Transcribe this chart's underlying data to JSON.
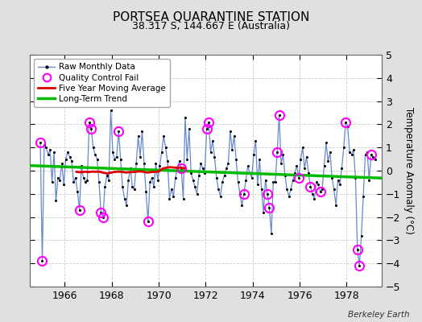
{
  "title": "PORTSEA QUARANTINE STATION",
  "subtitle": "38.317 S, 144.667 E (Australia)",
  "ylabel": "Temperature Anomaly (°C)",
  "watermark": "Berkeley Earth",
  "ylim": [
    -5,
    5
  ],
  "yticks": [
    -5,
    -4,
    -3,
    -2,
    -1,
    0,
    1,
    2,
    3,
    4,
    5
  ],
  "xlim": [
    1964.5,
    1979.5
  ],
  "xticks": [
    1966,
    1968,
    1970,
    1972,
    1974,
    1976,
    1978
  ],
  "background_color": "#e0e0e0",
  "plot_background": "#ffffff",
  "raw_line_color": "#6688cc",
  "dot_color": "#000000",
  "ma_color": "#dd0000",
  "trend_color": "#00bb00",
  "qc_color": "#ff00ff",
  "raw_monthly": [
    [
      1964.958,
      1.2
    ],
    [
      1965.042,
      -3.9
    ],
    [
      1965.125,
      1.1
    ],
    [
      1965.208,
      1.0
    ],
    [
      1965.292,
      0.7
    ],
    [
      1965.375,
      0.9
    ],
    [
      1965.458,
      -0.5
    ],
    [
      1965.542,
      0.8
    ],
    [
      1965.625,
      -1.3
    ],
    [
      1965.708,
      -0.3
    ],
    [
      1965.792,
      -0.4
    ],
    [
      1965.875,
      0.3
    ],
    [
      1965.958,
      -0.6
    ],
    [
      1966.042,
      0.5
    ],
    [
      1966.125,
      0.8
    ],
    [
      1966.208,
      0.6
    ],
    [
      1966.292,
      0.4
    ],
    [
      1966.375,
      -0.5
    ],
    [
      1966.458,
      -0.3
    ],
    [
      1966.542,
      -0.9
    ],
    [
      1966.625,
      -1.7
    ],
    [
      1966.708,
      0.2
    ],
    [
      1966.792,
      -0.3
    ],
    [
      1966.875,
      -0.5
    ],
    [
      1966.958,
      -0.4
    ],
    [
      1967.042,
      2.1
    ],
    [
      1967.125,
      1.8
    ],
    [
      1967.208,
      1.0
    ],
    [
      1967.292,
      0.7
    ],
    [
      1967.375,
      0.5
    ],
    [
      1967.458,
      -0.5
    ],
    [
      1967.542,
      -1.8
    ],
    [
      1967.625,
      -2.0
    ],
    [
      1967.708,
      -0.7
    ],
    [
      1967.792,
      -0.2
    ],
    [
      1967.875,
      -0.4
    ],
    [
      1967.958,
      2.6
    ],
    [
      1968.042,
      0.8
    ],
    [
      1968.125,
      0.5
    ],
    [
      1968.208,
      0.6
    ],
    [
      1968.292,
      1.7
    ],
    [
      1968.375,
      0.5
    ],
    [
      1968.458,
      -0.7
    ],
    [
      1968.542,
      -1.2
    ],
    [
      1968.625,
      -1.5
    ],
    [
      1968.708,
      -0.4
    ],
    [
      1968.792,
      0.1
    ],
    [
      1968.875,
      -0.7
    ],
    [
      1968.958,
      -0.8
    ],
    [
      1969.042,
      0.3
    ],
    [
      1969.125,
      1.5
    ],
    [
      1969.208,
      0.6
    ],
    [
      1969.292,
      1.7
    ],
    [
      1969.375,
      0.3
    ],
    [
      1969.458,
      -0.9
    ],
    [
      1969.542,
      -2.2
    ],
    [
      1969.625,
      -0.5
    ],
    [
      1969.708,
      -0.3
    ],
    [
      1969.792,
      -0.7
    ],
    [
      1969.875,
      0.3
    ],
    [
      1969.958,
      -0.4
    ],
    [
      1970.042,
      0.2
    ],
    [
      1970.125,
      0.8
    ],
    [
      1970.208,
      1.5
    ],
    [
      1970.292,
      1.0
    ],
    [
      1970.375,
      0.4
    ],
    [
      1970.458,
      -1.2
    ],
    [
      1970.542,
      -0.8
    ],
    [
      1970.625,
      -1.1
    ],
    [
      1970.708,
      -0.3
    ],
    [
      1970.792,
      0.1
    ],
    [
      1970.875,
      0.4
    ],
    [
      1970.958,
      0.1
    ],
    [
      1971.042,
      -1.2
    ],
    [
      1971.125,
      2.3
    ],
    [
      1971.208,
      0.5
    ],
    [
      1971.292,
      1.8
    ],
    [
      1971.375,
      -0.1
    ],
    [
      1971.458,
      -0.4
    ],
    [
      1971.542,
      -0.7
    ],
    [
      1971.625,
      -1.0
    ],
    [
      1971.708,
      -0.2
    ],
    [
      1971.792,
      0.3
    ],
    [
      1971.875,
      0.1
    ],
    [
      1971.958,
      -0.1
    ],
    [
      1972.042,
      1.8
    ],
    [
      1972.125,
      2.1
    ],
    [
      1972.208,
      0.8
    ],
    [
      1972.292,
      1.3
    ],
    [
      1972.375,
      0.6
    ],
    [
      1972.458,
      -0.3
    ],
    [
      1972.542,
      -0.8
    ],
    [
      1972.625,
      -1.1
    ],
    [
      1972.708,
      -0.5
    ],
    [
      1972.792,
      -0.2
    ],
    [
      1972.875,
      0.1
    ],
    [
      1972.958,
      0.3
    ],
    [
      1973.042,
      1.7
    ],
    [
      1973.125,
      0.9
    ],
    [
      1973.208,
      1.5
    ],
    [
      1973.292,
      0.5
    ],
    [
      1973.375,
      -0.5
    ],
    [
      1973.458,
      -1.0
    ],
    [
      1973.542,
      -1.5
    ],
    [
      1973.625,
      -1.0
    ],
    [
      1973.708,
      -0.4
    ],
    [
      1973.792,
      0.2
    ],
    [
      1973.875,
      -0.1
    ],
    [
      1973.958,
      -0.3
    ],
    [
      1974.042,
      0.7
    ],
    [
      1974.125,
      1.3
    ],
    [
      1974.208,
      -0.6
    ],
    [
      1974.292,
      0.5
    ],
    [
      1974.375,
      -0.8
    ],
    [
      1974.458,
      -1.8
    ],
    [
      1974.542,
      -0.4
    ],
    [
      1974.625,
      -1.0
    ],
    [
      1974.708,
      -1.6
    ],
    [
      1974.792,
      -2.7
    ],
    [
      1974.875,
      -0.5
    ],
    [
      1974.958,
      -0.5
    ],
    [
      1975.042,
      0.8
    ],
    [
      1975.125,
      2.4
    ],
    [
      1975.208,
      0.3
    ],
    [
      1975.292,
      0.7
    ],
    [
      1975.375,
      -0.2
    ],
    [
      1975.458,
      -0.8
    ],
    [
      1975.542,
      -1.1
    ],
    [
      1975.625,
      -0.8
    ],
    [
      1975.708,
      -0.4
    ],
    [
      1975.792,
      -0.1
    ],
    [
      1975.875,
      0.2
    ],
    [
      1975.958,
      -0.3
    ],
    [
      1976.042,
      0.5
    ],
    [
      1976.125,
      1.0
    ],
    [
      1976.208,
      0.1
    ],
    [
      1976.292,
      0.6
    ],
    [
      1976.375,
      -0.1
    ],
    [
      1976.458,
      -0.7
    ],
    [
      1976.542,
      -1.0
    ],
    [
      1976.625,
      -1.2
    ],
    [
      1976.708,
      -0.5
    ],
    [
      1976.792,
      -0.6
    ],
    [
      1976.875,
      -0.9
    ],
    [
      1976.958,
      -0.8
    ],
    [
      1977.042,
      0.2
    ],
    [
      1977.125,
      1.2
    ],
    [
      1977.208,
      0.4
    ],
    [
      1977.292,
      0.8
    ],
    [
      1977.375,
      -0.3
    ],
    [
      1977.458,
      -0.8
    ],
    [
      1977.542,
      -1.5
    ],
    [
      1977.625,
      -0.4
    ],
    [
      1977.708,
      -0.6
    ],
    [
      1977.792,
      0.1
    ],
    [
      1977.875,
      1.0
    ],
    [
      1977.958,
      2.1
    ],
    [
      1978.042,
      1.9
    ],
    [
      1978.125,
      0.8
    ],
    [
      1978.208,
      0.7
    ],
    [
      1978.292,
      0.9
    ],
    [
      1978.375,
      -0.3
    ],
    [
      1978.458,
      -3.4
    ],
    [
      1978.542,
      -4.1
    ],
    [
      1978.625,
      -2.8
    ],
    [
      1978.708,
      -1.1
    ],
    [
      1978.792,
      0.7
    ],
    [
      1978.875,
      0.8
    ],
    [
      1978.958,
      -0.4
    ],
    [
      1979.042,
      0.7
    ],
    [
      1979.125,
      0.6
    ],
    [
      1979.208,
      0.5
    ]
  ],
  "qc_fail": [
    [
      1964.958,
      1.2
    ],
    [
      1965.042,
      -3.9
    ],
    [
      1966.625,
      -1.7
    ],
    [
      1967.042,
      2.1
    ],
    [
      1967.125,
      1.8
    ],
    [
      1967.542,
      -1.8
    ],
    [
      1967.625,
      -2.0
    ],
    [
      1968.292,
      1.7
    ],
    [
      1969.542,
      -2.2
    ],
    [
      1970.958,
      0.1
    ],
    [
      1972.042,
      1.8
    ],
    [
      1972.125,
      2.1
    ],
    [
      1973.625,
      -1.0
    ],
    [
      1974.625,
      -1.0
    ],
    [
      1974.708,
      -1.6
    ],
    [
      1975.042,
      0.8
    ],
    [
      1975.125,
      2.4
    ],
    [
      1975.958,
      -0.3
    ],
    [
      1976.458,
      -0.7
    ],
    [
      1976.875,
      -0.9
    ],
    [
      1977.958,
      2.1
    ],
    [
      1978.458,
      -3.4
    ],
    [
      1978.542,
      -4.1
    ],
    [
      1979.042,
      0.7
    ]
  ],
  "moving_avg": [
    [
      1966.5,
      -0.05
    ],
    [
      1966.6,
      -0.06
    ],
    [
      1966.7,
      -0.07
    ],
    [
      1966.8,
      -0.05
    ],
    [
      1966.9,
      -0.05
    ],
    [
      1967.0,
      -0.06
    ],
    [
      1967.1,
      -0.05
    ],
    [
      1967.2,
      -0.04
    ],
    [
      1967.3,
      -0.05
    ],
    [
      1967.4,
      -0.04
    ],
    [
      1967.5,
      -0.05
    ],
    [
      1967.6,
      -0.08
    ],
    [
      1967.7,
      -0.1
    ],
    [
      1967.8,
      -0.12
    ],
    [
      1967.9,
      -0.1
    ],
    [
      1968.0,
      -0.08
    ],
    [
      1968.1,
      -0.06
    ],
    [
      1968.2,
      -0.05
    ],
    [
      1968.3,
      -0.04
    ],
    [
      1968.4,
      -0.05
    ],
    [
      1968.5,
      -0.06
    ],
    [
      1968.6,
      -0.08
    ],
    [
      1968.7,
      -0.07
    ],
    [
      1968.8,
      -0.06
    ],
    [
      1968.9,
      -0.06
    ],
    [
      1969.0,
      -0.05
    ],
    [
      1969.1,
      -0.04
    ],
    [
      1969.2,
      -0.03
    ],
    [
      1969.3,
      -0.04
    ],
    [
      1969.4,
      -0.06
    ],
    [
      1969.5,
      -0.08
    ],
    [
      1969.6,
      -0.07
    ],
    [
      1969.7,
      -0.06
    ],
    [
      1969.8,
      -0.05
    ],
    [
      1969.9,
      -0.05
    ],
    [
      1970.0,
      -0.04
    ],
    [
      1970.1,
      0.05
    ],
    [
      1970.2,
      0.1
    ],
    [
      1970.3,
      0.12
    ],
    [
      1970.4,
      0.14
    ],
    [
      1970.5,
      0.15
    ],
    [
      1970.6,
      0.14
    ],
    [
      1970.7,
      0.13
    ],
    [
      1970.8,
      0.12
    ],
    [
      1970.9,
      0.13
    ],
    [
      1971.0,
      0.12
    ],
    [
      1971.1,
      0.1
    ]
  ],
  "trend_x": [
    1964.5,
    1979.5
  ],
  "trend_y": [
    0.22,
    -0.32
  ]
}
